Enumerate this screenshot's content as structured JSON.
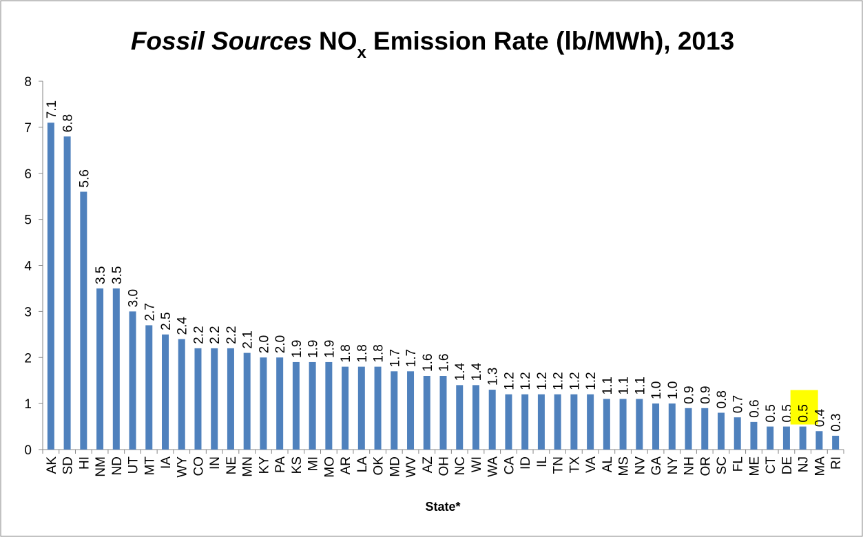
{
  "chart_data": {
    "type": "bar",
    "title": {
      "italic": "Fossil Sources",
      "main": "NO",
      "subscript": "x",
      "rest": "Emission Rate (lb/MWh), 2013"
    },
    "x_label": "State*",
    "categories": [
      "AK",
      "SD",
      "HI",
      "NM",
      "ND",
      "UT",
      "MT",
      "IA",
      "WY",
      "CO",
      "IN",
      "NE",
      "MN",
      "KY",
      "PA",
      "KS",
      "MI",
      "MO",
      "AR",
      "LA",
      "OK",
      "MD",
      "WV",
      "AZ",
      "OH",
      "NC",
      "WI",
      "WA",
      "CA",
      "ID",
      "IL",
      "TN",
      "TX",
      "VA",
      "AL",
      "MS",
      "NV",
      "GA",
      "NY",
      "NH",
      "OR",
      "SC",
      "FL",
      "ME",
      "CT",
      "DE",
      "NJ",
      "MA",
      "RI"
    ],
    "values": [
      7.1,
      6.8,
      5.6,
      3.5,
      3.5,
      3.0,
      2.7,
      2.5,
      2.4,
      2.2,
      2.2,
      2.2,
      2.1,
      2.0,
      2.0,
      1.9,
      1.9,
      1.9,
      1.8,
      1.8,
      1.8,
      1.7,
      1.7,
      1.6,
      1.6,
      1.4,
      1.4,
      1.3,
      1.2,
      1.2,
      1.2,
      1.2,
      1.2,
      1.2,
      1.1,
      1.1,
      1.1,
      1.0,
      1.0,
      0.9,
      0.9,
      0.8,
      0.7,
      0.6,
      0.5,
      0.5,
      0.5,
      0.4,
      0.3
    ],
    "value_labels": [
      "7.1",
      "6.8",
      "5.6",
      "3.5",
      "3.5",
      "3.0",
      "2.7",
      "2.5",
      "2.4",
      "2.2",
      "2.2",
      "2.2",
      "2.1",
      "2.0",
      "2.0",
      "1.9",
      "1.9",
      "1.9",
      "1.8",
      "1.8",
      "1.8",
      "1.7",
      "1.7",
      "1.6",
      "1.6",
      "1.4",
      "1.4",
      "1.3",
      "1.2",
      "1.2",
      "1.2",
      "1.2",
      "1.2",
      "1.2",
      "1.1",
      "1.1",
      "1.1",
      "1.0",
      "1.0",
      "0.9",
      "0.9",
      "0.8",
      "0.7",
      "0.6",
      "0.5",
      "0.5",
      "0.5",
      "0.4",
      "0.3"
    ],
    "color": "#4f81bd",
    "highlight": {
      "index": 46,
      "color": "#ffff00"
    },
    "ylim": [
      0,
      8
    ],
    "yticks": [
      0,
      1,
      2,
      3,
      4,
      5,
      6,
      7,
      8
    ],
    "grid": false
  }
}
